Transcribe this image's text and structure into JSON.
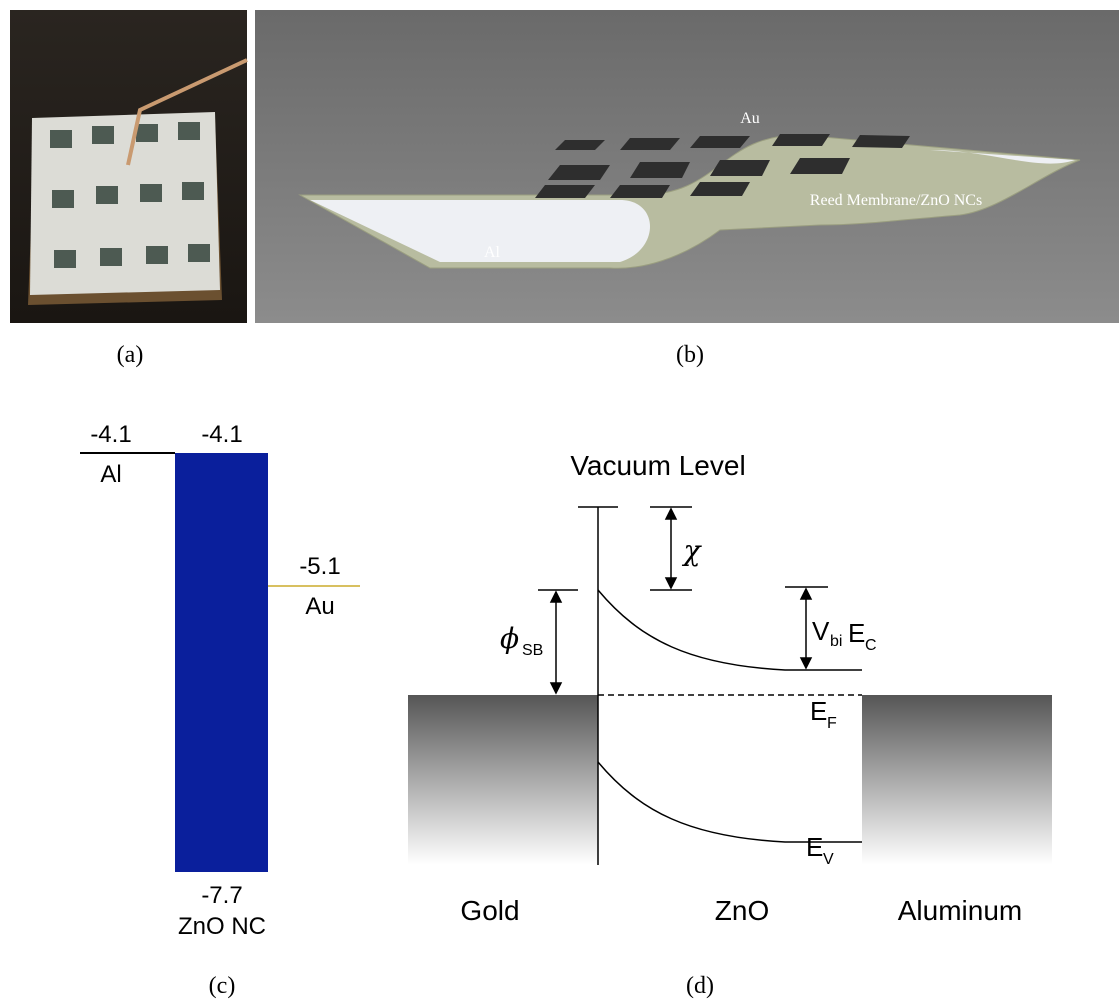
{
  "panels": {
    "a": {
      "label": "(a)"
    },
    "b": {
      "label": "(b)",
      "top_electrode": "Au",
      "membrane": "Reed Membrane/ZnO NCs",
      "bottom_electrode": "Al"
    },
    "c": {
      "label": "(c)",
      "al_energy": "-4.1",
      "al_name": "Al",
      "zno_top_energy": "-4.1",
      "au_energy": "-5.1",
      "au_name": "Au",
      "zno_bottom_energy": "-7.7",
      "zno_name": "ZnO NC"
    },
    "d": {
      "label": "(d)",
      "vacuum_level": "Vacuum Level",
      "chi": "χ",
      "phi_sb": {
        "symbol": "ϕ",
        "subscript": "SB"
      },
      "v_bi": {
        "symbol": "V",
        "subscript": "bi"
      },
      "e_c": {
        "symbol": "E",
        "subscript": "C"
      },
      "e_f": {
        "symbol": "E",
        "subscript": "F"
      },
      "e_v": {
        "symbol": "E",
        "subscript": "V"
      },
      "gold": "Gold",
      "zno": "ZnO",
      "aluminum": "Aluminum"
    }
  }
}
